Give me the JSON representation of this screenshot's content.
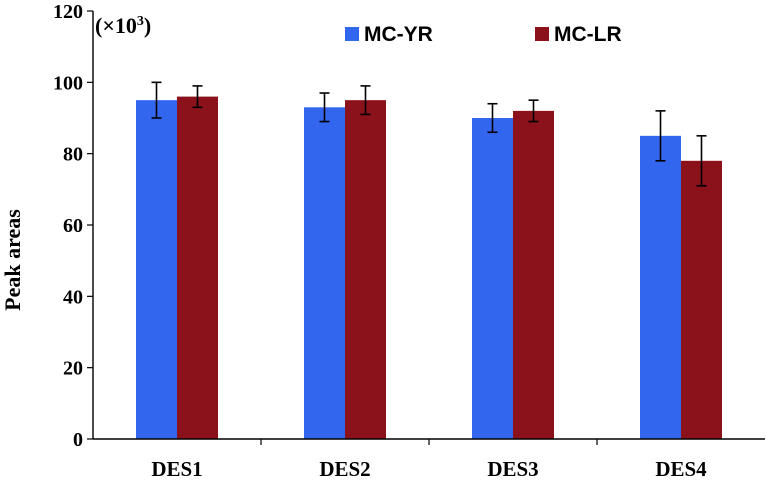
{
  "chart_data": {
    "type": "bar",
    "categories": [
      "DES1",
      "DES2",
      "DES3",
      "DES4"
    ],
    "series": [
      {
        "name": "MC-YR",
        "color": "#3366ee",
        "values": [
          95,
          93,
          90,
          85
        ],
        "errors": [
          5,
          4,
          4,
          7
        ]
      },
      {
        "name": "MC-LR",
        "color": "#8b111b",
        "values": [
          96,
          95,
          92,
          78
        ],
        "errors": [
          3,
          4,
          3,
          7
        ]
      }
    ],
    "ylabel": "Peak areas",
    "y_multiplier": "(×10",
    "y_multiplier_exp": "3",
    "y_multiplier_close": ")",
    "ylim": [
      0,
      120
    ],
    "yticks": [
      0,
      20,
      40,
      60,
      80,
      100,
      120
    ],
    "grid": false,
    "legend_position": "top"
  }
}
